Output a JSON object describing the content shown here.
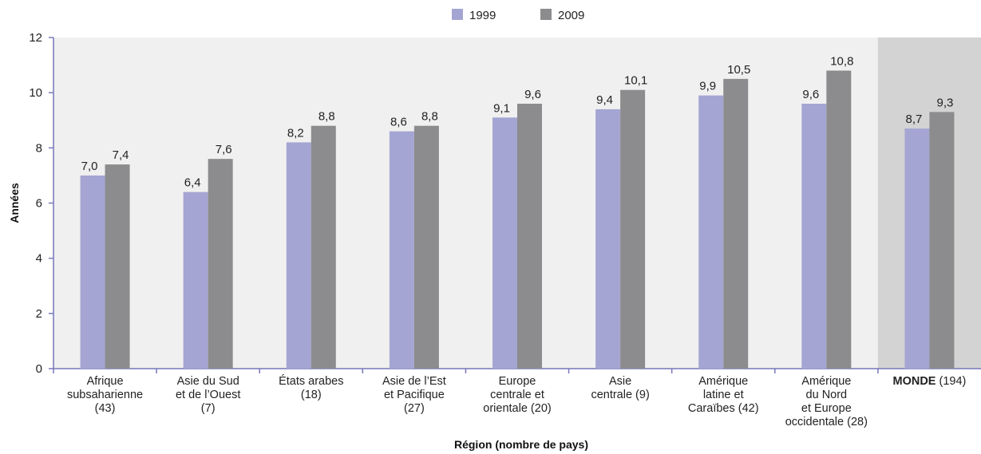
{
  "chart_data": {
    "type": "bar",
    "title": "",
    "xlabel": "Région (nombre de pays)",
    "ylabel": "Années",
    "ylim": [
      0,
      12
    ],
    "yticks": [
      "0",
      "2",
      "4",
      "6",
      "8",
      "10",
      "12"
    ],
    "grid": false,
    "legend_position": "top",
    "categories": [
      [
        "Afrique",
        "subsaharienne",
        "(43)"
      ],
      [
        "Asie du Sud",
        "et de l’Ouest",
        "(7)"
      ],
      [
        "États arabes",
        "(18)"
      ],
      [
        "Asie de l’Est",
        "et Pacifique",
        "(27)"
      ],
      [
        "Europe",
        "centrale et",
        "orientale (20)"
      ],
      [
        "Asie",
        "centrale (9)"
      ],
      [
        "Amérique",
        "latine et",
        "Caraïbes (42)"
      ],
      [
        "Amérique",
        "du Nord",
        "et Europe",
        "occidentale (28)"
      ],
      [
        {
          "bold": "MONDE",
          "normal": " (194)"
        }
      ]
    ],
    "highlight_category_index": 8,
    "series": [
      {
        "name": "1999",
        "color": "#a5a5d3",
        "values": [
          7.0,
          6.4,
          8.2,
          8.6,
          9.1,
          9.4,
          9.9,
          9.6,
          8.7
        ],
        "labels": [
          "7,0",
          "6,4",
          "8,2",
          "8,6",
          "9,1",
          "9,4",
          "9,9",
          "9,6",
          "8,7"
        ]
      },
      {
        "name": "2009",
        "color": "#8c8c8e",
        "values": [
          7.4,
          7.6,
          8.8,
          8.8,
          9.6,
          10.1,
          10.5,
          10.8,
          9.3
        ],
        "labels": [
          "7,4",
          "7,6",
          "8,8",
          "8,8",
          "9,6",
          "10,1",
          "10,5",
          "10,8",
          "9,3"
        ]
      }
    ],
    "colors": {
      "plot_background": "#f0f0f0",
      "highlight_background": "#d3d3d3",
      "axis": "#7777bb"
    }
  }
}
